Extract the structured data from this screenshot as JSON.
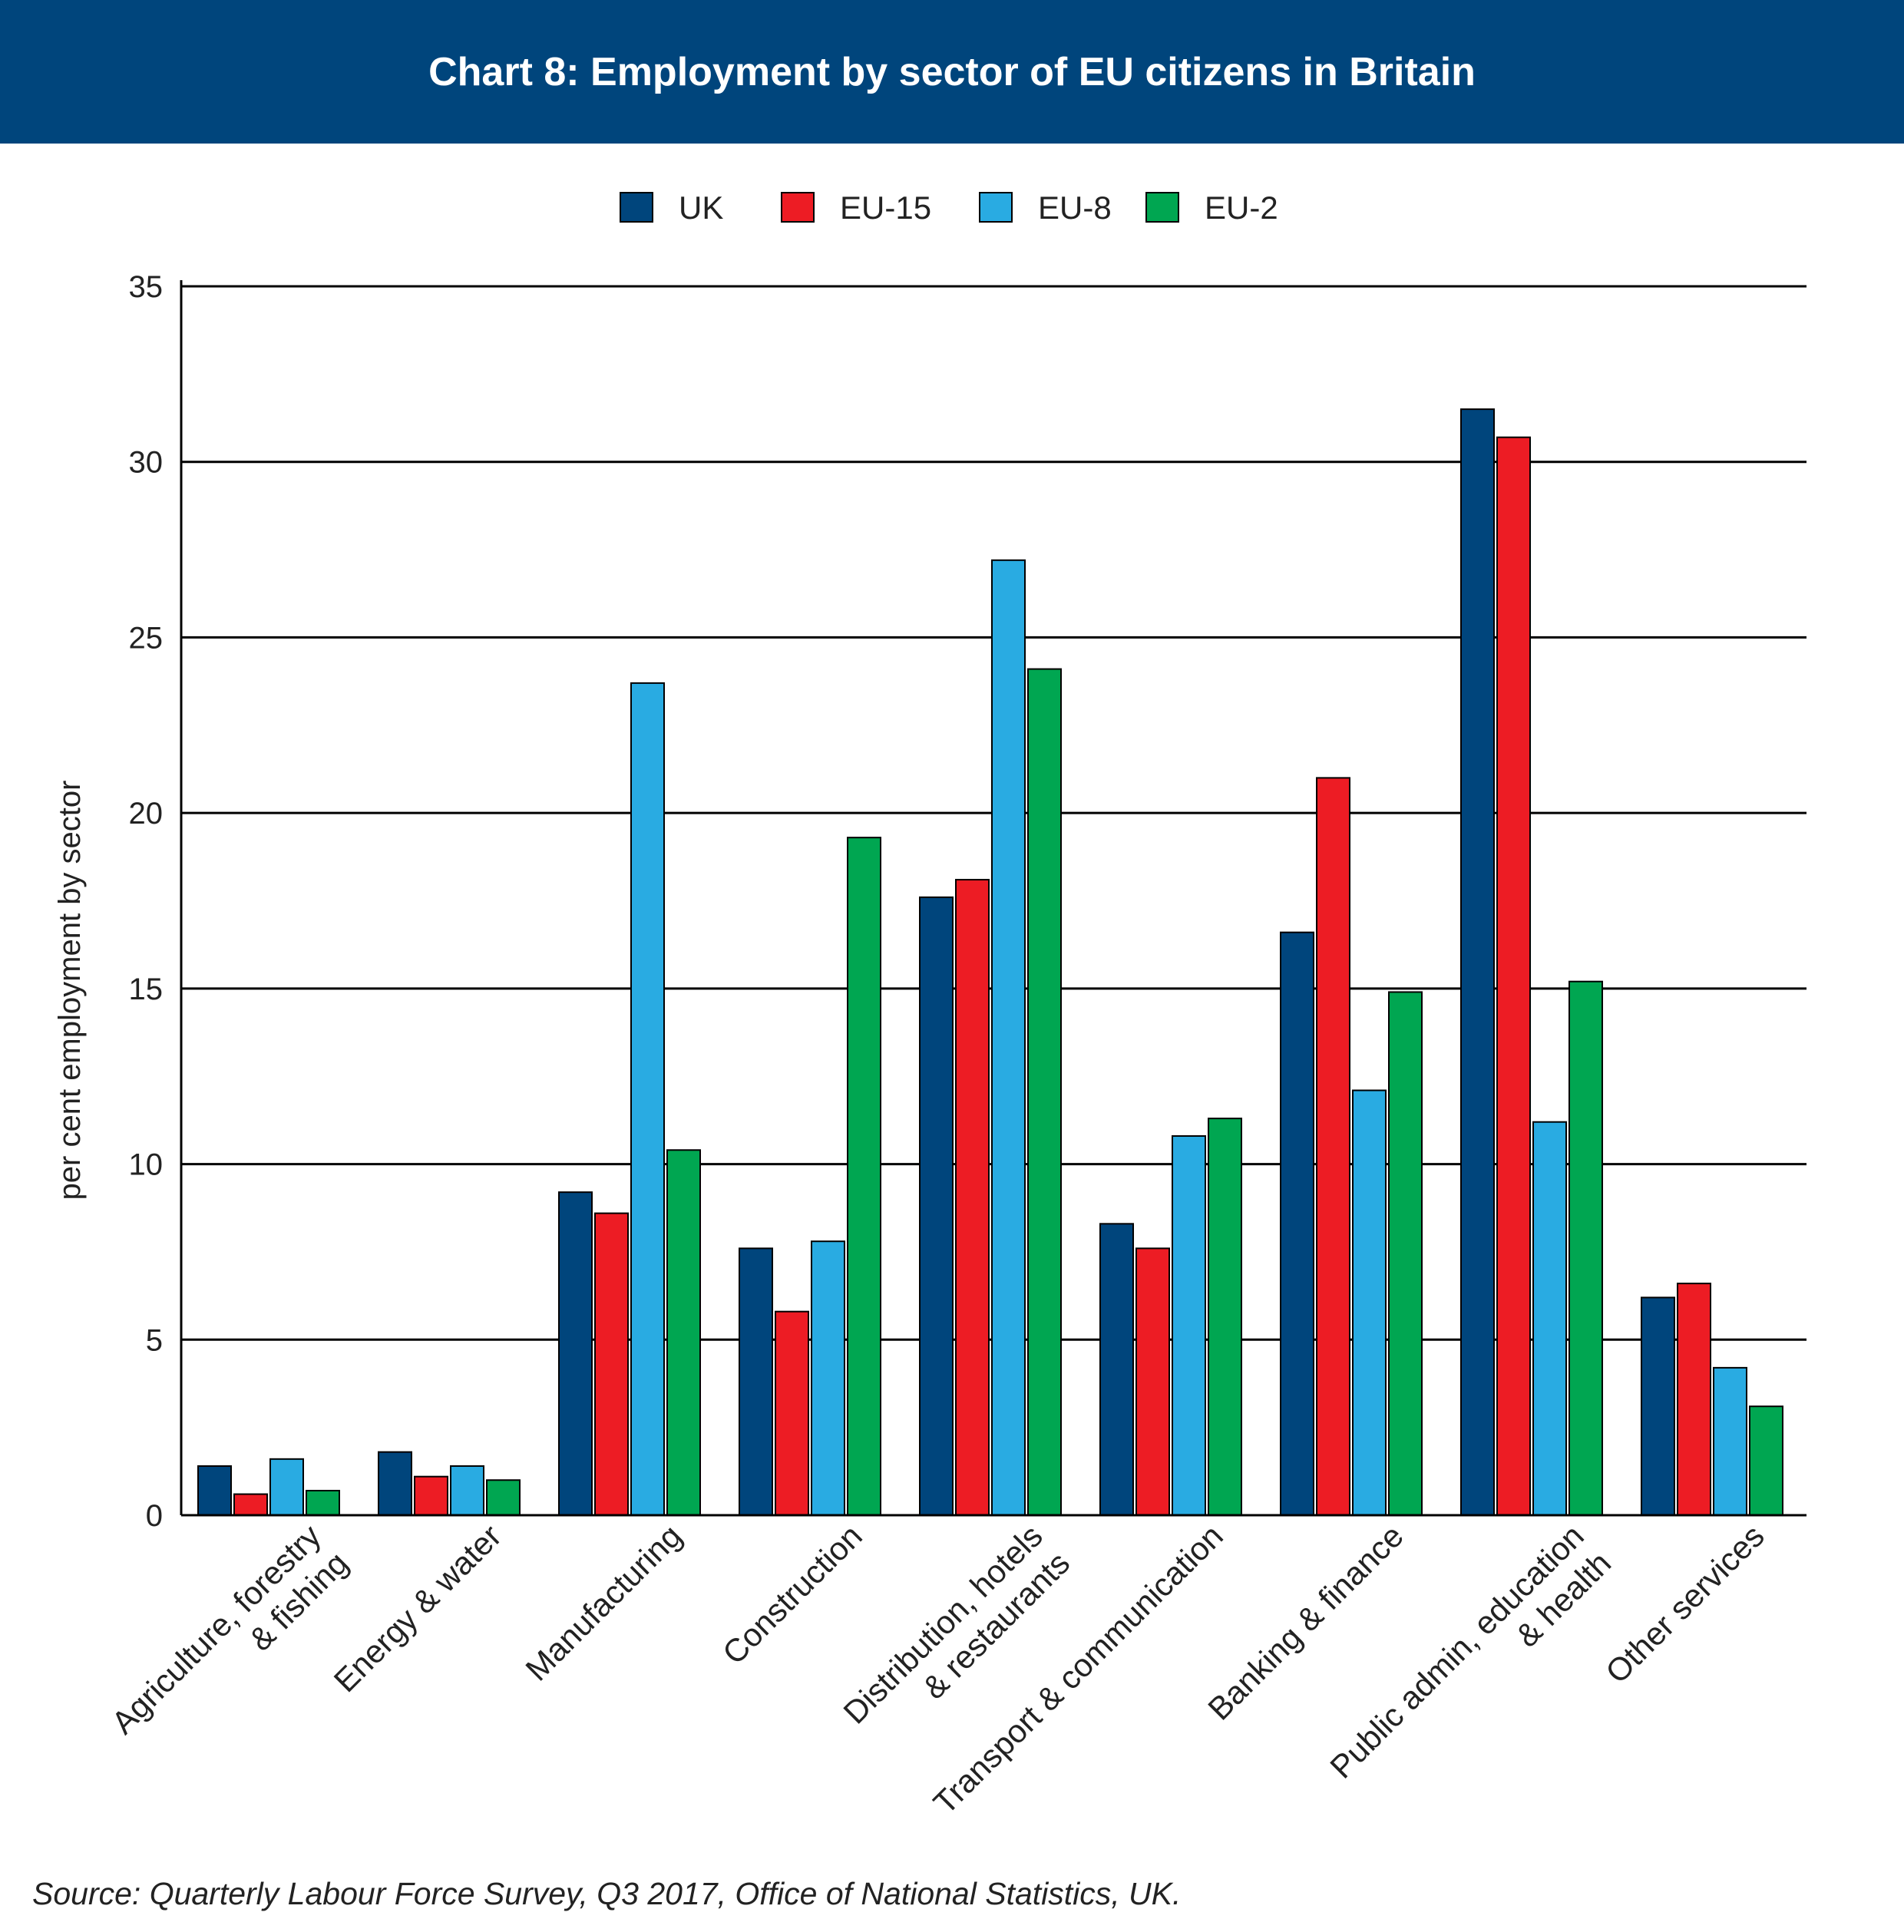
{
  "header": {
    "title": "Chart 8: Employment by sector of EU citizens in Britain",
    "background": "#00457c"
  },
  "source": "Source: Quarterly Labour Force Survey, Q3 2017, Office of National Statistics, UK.",
  "chart_data": {
    "type": "bar",
    "title": "Chart 8: Employment by sector of EU citizens in Britain",
    "xlabel": "",
    "ylabel": "per cent employment by sector",
    "ylim": [
      0,
      35
    ],
    "yticks": [
      0,
      5,
      10,
      15,
      20,
      25,
      30,
      35
    ],
    "grid": true,
    "legend_position": "top-center",
    "categories": [
      [
        "Agriculture, forestry",
        "& fishing"
      ],
      [
        "Energy & water"
      ],
      [
        "Manufacturing"
      ],
      [
        "Construction"
      ],
      [
        "Distribution, hotels",
        "& restaurants"
      ],
      [
        "Transport & communication"
      ],
      [
        "Banking & finance"
      ],
      [
        "Public admin, education",
        "& health"
      ],
      [
        "Other services"
      ]
    ],
    "series": [
      {
        "name": "UK",
        "color": "#00457c",
        "values": [
          1.4,
          1.8,
          9.2,
          7.6,
          17.6,
          8.3,
          16.6,
          31.5,
          6.2
        ]
      },
      {
        "name": "EU-15",
        "color": "#ed1c24",
        "values": [
          0.6,
          1.1,
          8.6,
          5.8,
          18.1,
          7.6,
          21.0,
          30.7,
          6.6
        ]
      },
      {
        "name": "EU-8",
        "color": "#29abe2",
        "values": [
          1.6,
          1.4,
          23.7,
          7.8,
          27.2,
          10.8,
          12.1,
          11.2,
          4.2
        ]
      },
      {
        "name": "EU-2",
        "color": "#00a651",
        "values": [
          0.7,
          1.0,
          10.4,
          19.3,
          24.1,
          11.3,
          14.9,
          15.2,
          3.1
        ]
      }
    ]
  }
}
